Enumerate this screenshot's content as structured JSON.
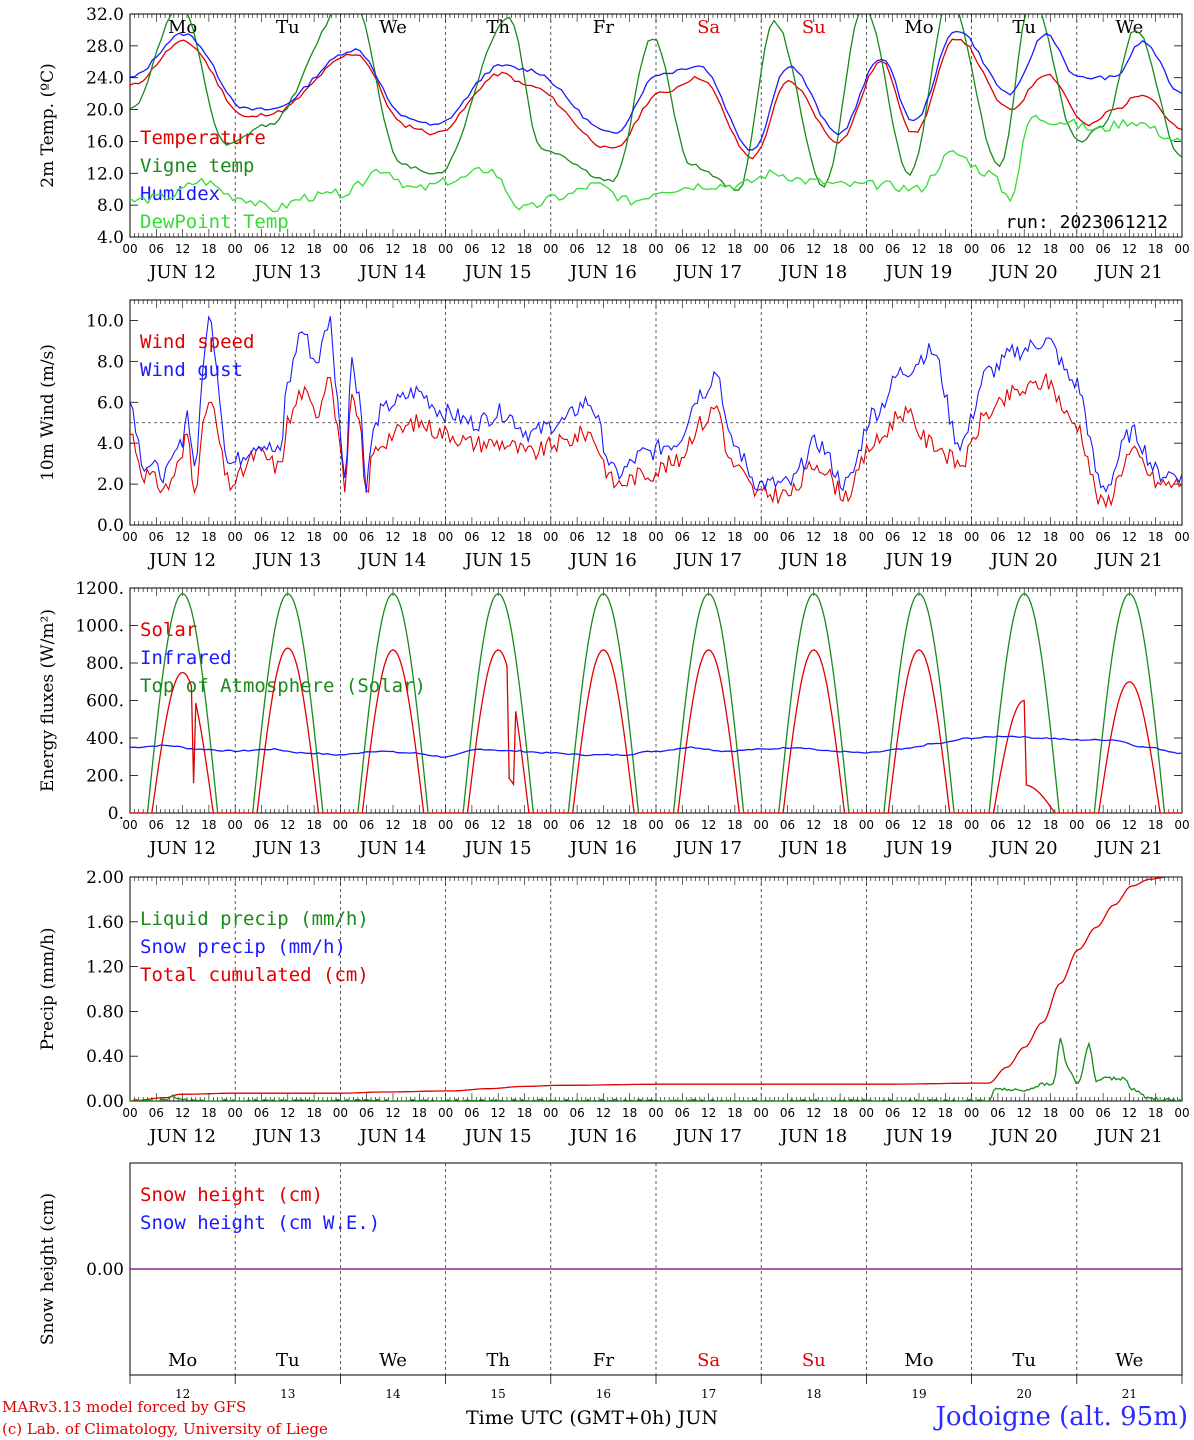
{
  "chart_data": [
    {
      "type": "line",
      "ylabel": "2m Temp. (ºC)",
      "ylim": [
        4,
        32
      ],
      "yticks": [
        "4.0",
        "8.0",
        "12.0",
        "16.0",
        "20.0",
        "24.0",
        "28.0",
        "32.0"
      ],
      "grid_ref": "none",
      "weekdays": [
        "Mo",
        "Tu",
        "We",
        "Th",
        "Fr",
        "Sa",
        "Su",
        "Mo",
        "Tu",
        "We"
      ],
      "weekday_colors": [
        "#000000",
        "#000000",
        "#000000",
        "#000000",
        "#000000",
        "#e00000",
        "#e00000",
        "#000000",
        "#000000",
        "#000000"
      ],
      "annotation": "run: 2023061212",
      "legend": [
        {
          "name": "Temperature",
          "color": "#e00000"
        },
        {
          "name": "Vigne temp",
          "color": "#1a8a1a"
        },
        {
          "name": "Humidex",
          "color": "#1a1aff"
        },
        {
          "name": "DewPoint Temp",
          "color": "#33dd33"
        }
      ],
      "series": [
        {
          "name": "Temperature",
          "color": "#e00000",
          "x": [
            0,
            15,
            33,
            39,
            63,
            77,
            85,
            104,
            111,
            135,
            148,
            159,
            174,
            184,
            198,
            210,
            219,
            231,
            246,
            256,
            268,
            275,
            283,
            294
          ],
          "y": [
            23,
            28.5,
            19,
            19.5,
            27,
            18,
            17,
            24.5,
            23,
            15,
            22,
            24,
            14,
            23.5,
            16,
            26,
            17,
            29,
            20,
            24.5,
            18,
            20,
            22,
            17.5
          ]
        },
        {
          "name": "Vigne temp",
          "color": "#1a8a1a",
          "x": [
            0,
            14,
            27,
            38,
            62,
            76,
            86,
            106,
            115,
            135,
            146,
            157,
            170,
            180,
            194,
            205,
            218,
            229,
            243,
            252,
            265,
            272,
            281,
            294
          ],
          "y": [
            20,
            33,
            15.5,
            18,
            34,
            13,
            12,
            31.5,
            15,
            11,
            29,
            13,
            10,
            31,
            10.5,
            33,
            12,
            34,
            13,
            34,
            16,
            18,
            30,
            14
          ]
        },
        {
          "name": "Humidex",
          "color": "#1a1aff",
          "x": [
            0,
            15,
            33,
            39,
            63,
            77,
            85,
            104,
            111,
            135,
            148,
            159,
            174,
            184,
            198,
            210,
            219,
            231,
            246,
            256,
            265,
            275,
            283,
            294
          ],
          "y": [
            24,
            29.5,
            20,
            20,
            27.5,
            19,
            18,
            25.5,
            25,
            17,
            24.5,
            25.5,
            15,
            25.5,
            17,
            26.5,
            18.5,
            30,
            22,
            29.5,
            24,
            24,
            28.5,
            22
          ]
        },
        {
          "name": "DewPoint Temp",
          "color": "#33dd33",
          "x": [
            0,
            10,
            20,
            30,
            40,
            50,
            60,
            70,
            80,
            90,
            100,
            110,
            120,
            130,
            140,
            150,
            160,
            170,
            180,
            190,
            200,
            210,
            220,
            230,
            240,
            246,
            252,
            260,
            270,
            280,
            294
          ],
          "y": [
            8.5,
            9,
            11,
            9,
            7.5,
            9,
            9.5,
            12.5,
            10,
            11,
            12.5,
            7.5,
            9,
            10.5,
            8.5,
            10,
            10.5,
            10.5,
            12,
            11,
            10.5,
            10.5,
            10,
            14.5,
            12,
            9,
            19,
            18.5,
            17.5,
            18.5,
            16
          ]
        }
      ]
    },
    {
      "type": "line",
      "ylabel": "10m Wind (m/s)",
      "ylim": [
        0,
        11
      ],
      "yticks": [
        "0.0",
        "2.0",
        "4.0",
        "6.0",
        "8.0",
        "10.0"
      ],
      "grid_ref": 5,
      "legend": [
        {
          "name": "Wind speed",
          "color": "#e00000"
        },
        {
          "name": "Wind gust",
          "color": "#1a1aff"
        }
      ],
      "series": [
        {
          "name": "Wind speed",
          "color": "#e00000",
          "x": [
            0,
            4,
            10,
            14,
            16,
            18,
            22,
            28,
            36,
            42,
            44,
            48,
            52,
            56,
            58,
            60,
            62,
            64,
            66,
            68,
            70,
            74,
            80,
            88,
            96,
            104,
            112,
            120,
            128,
            136,
            144,
            152,
            160,
            164,
            168,
            176,
            184,
            192,
            200,
            208,
            216,
            224,
            232,
            240,
            248,
            256,
            264,
            272,
            280,
            288,
            294
          ],
          "y": [
            4.5,
            2.5,
            1.8,
            3.0,
            4.5,
            2.0,
            6.0,
            2.0,
            3.5,
            2.8,
            5.0,
            6.5,
            5.5,
            7.5,
            4.8,
            2.0,
            6.0,
            5.0,
            1.5,
            3.5,
            4.0,
            4.5,
            5.0,
            4.5,
            4.0,
            4.0,
            3.5,
            4.0,
            4.5,
            2.0,
            2.5,
            3.0,
            5.0,
            5.8,
            3.0,
            1.5,
            1.5,
            3.0,
            1.5,
            4.0,
            5.5,
            4.0,
            3.0,
            5.5,
            6.5,
            7.0,
            5.0,
            1.0,
            3.5,
            2.0,
            2.0
          ]
        },
        {
          "name": "Wind gust",
          "color": "#1a1aff",
          "x": [
            0,
            4,
            10,
            14,
            16,
            18,
            22,
            28,
            36,
            42,
            44,
            48,
            52,
            56,
            58,
            60,
            62,
            64,
            66,
            68,
            70,
            74,
            80,
            88,
            96,
            104,
            112,
            120,
            128,
            136,
            144,
            152,
            160,
            164,
            168,
            176,
            184,
            192,
            200,
            208,
            216,
            224,
            232,
            240,
            248,
            256,
            264,
            272,
            280,
            288,
            294
          ],
          "y": [
            6.0,
            3.0,
            2.5,
            3.8,
            5.5,
            3.0,
            10.0,
            3.0,
            4.0,
            3.5,
            7.0,
            9.5,
            8.0,
            10.0,
            6.0,
            2.5,
            8.0,
            6.5,
            2.0,
            4.5,
            5.5,
            6.0,
            6.5,
            5.5,
            5.0,
            5.5,
            4.5,
            5.0,
            6.0,
            2.5,
            3.5,
            4.0,
            6.5,
            7.5,
            4.0,
            2.0,
            2.0,
            4.0,
            2.0,
            5.5,
            7.5,
            8.5,
            4.0,
            7.5,
            8.5,
            9.0,
            7.0,
            1.8,
            4.5,
            2.5,
            2.5
          ]
        }
      ]
    },
    {
      "type": "line",
      "ylabel": "Energy fluxes (W/m²)",
      "ylim": [
        0,
        1200
      ],
      "yticks": [
        "0.",
        "200.",
        "400.",
        "600.",
        "800.",
        "1000.",
        "1200."
      ],
      "grid_ref": "none",
      "legend": [
        {
          "name": "Solar",
          "color": "#e00000"
        },
        {
          "name": "Infrared",
          "color": "#1a1aff"
        },
        {
          "name": "Top of Atmosphere (Solar)",
          "color": "#1a8a1a"
        }
      ],
      "daily_toa_peak": 1170,
      "daily_solar_peak": [
        750,
        880,
        870,
        870,
        870,
        870,
        870,
        870,
        600,
        700
      ],
      "infrared": [
        350,
        360,
        340,
        330,
        340,
        320,
        310,
        330,
        320,
        300,
        340,
        330,
        320,
        310,
        310,
        330,
        350,
        330,
        340,
        350,
        330,
        320,
        340,
        370,
        400,
        410,
        400,
        390,
        390,
        350,
        320
      ]
    },
    {
      "type": "line",
      "ylabel": "Precip (mm/h)",
      "ylim": [
        0,
        2
      ],
      "yticks": [
        "0.00",
        "0.40",
        "0.80",
        "1.20",
        "1.60",
        "2.00"
      ],
      "grid_ref": "none",
      "legend": [
        {
          "name": "Liquid precip (mm/h)",
          "color": "#1a8a1a"
        },
        {
          "name": "Snow precip (mm/h)",
          "color": "#1a1aff"
        },
        {
          "name": "Total cumulated (cm)",
          "color": "#e00000"
        }
      ],
      "series": [
        {
          "name": "Total cumulated (cm)",
          "color": "#e00000",
          "x": [
            0,
            10,
            14,
            30,
            60,
            70,
            90,
            100,
            110,
            120,
            150,
            180,
            210,
            240,
            245,
            250,
            255,
            260,
            265,
            270,
            275,
            280,
            285,
            290,
            294
          ],
          "y": [
            0,
            0.03,
            0.06,
            0.07,
            0.07,
            0.08,
            0.09,
            0.11,
            0.13,
            0.14,
            0.15,
            0.15,
            0.15,
            0.16,
            0.3,
            0.48,
            0.7,
            1.05,
            1.35,
            1.55,
            1.75,
            1.92,
            1.98,
            2.0,
            2.0
          ]
        },
        {
          "name": "Liquid precip (mm/h)",
          "color": "#1a8a1a",
          "x": [
            0,
            10,
            12,
            14,
            16,
            240,
            242,
            245,
            250,
            255,
            258,
            260,
            262,
            265,
            268,
            270,
            272,
            275,
            278,
            280,
            285,
            294
          ],
          "y": [
            0,
            0,
            0.05,
            0.02,
            0,
            0,
            0.12,
            0.1,
            0.1,
            0.15,
            0.15,
            0.55,
            0.3,
            0.15,
            0.5,
            0.18,
            0.2,
            0.2,
            0.2,
            0.1,
            0.02,
            0
          ]
        }
      ]
    },
    {
      "type": "line",
      "ylabel": "Snow height (cm)",
      "ylim": [
        -1,
        1
      ],
      "yticks": [
        "0.00"
      ],
      "grid_ref": "none",
      "legend": [
        {
          "name": "Snow height (cm)",
          "color": "#e00000"
        },
        {
          "name": "Snow height (cm W.E.)",
          "color": "#1a1aff"
        }
      ],
      "series": [
        {
          "name": "Snow height (cm)",
          "color": "#8a2a8a",
          "x": [
            0,
            294
          ],
          "y": [
            0,
            0
          ]
        }
      ],
      "day_numbers": [
        "12",
        "13",
        "14",
        "15",
        "16",
        "17",
        "18",
        "19",
        "20",
        "21"
      ],
      "weekdays": [
        "Mo",
        "Tu",
        "We",
        "Th",
        "Fr",
        "Sa",
        "Su",
        "Mo",
        "Tu",
        "We"
      ],
      "weekday_colors": [
        "#000000",
        "#000000",
        "#000000",
        "#000000",
        "#000000",
        "#e00000",
        "#e00000",
        "#000000",
        "#000000",
        "#000000"
      ],
      "xlabel": "Time UTC (GMT+0h) JUN"
    }
  ],
  "x_axis": {
    "hour_ticks": [
      "00",
      "06",
      "12",
      "18"
    ],
    "final_tick": "00",
    "dates": [
      "JUN 12",
      "JUN 13",
      "JUN 14",
      "JUN 15",
      "JUN 16",
      "JUN 17",
      "JUN 18",
      "JUN 19",
      "JUN 20",
      "JUN 21"
    ]
  },
  "footer": {
    "credit_line1": "MARv3.13 model forced by GFS",
    "credit_line2": "(c) Lab. of Climatology, University of Liege",
    "site": "Jodoigne (alt. 95m)"
  }
}
